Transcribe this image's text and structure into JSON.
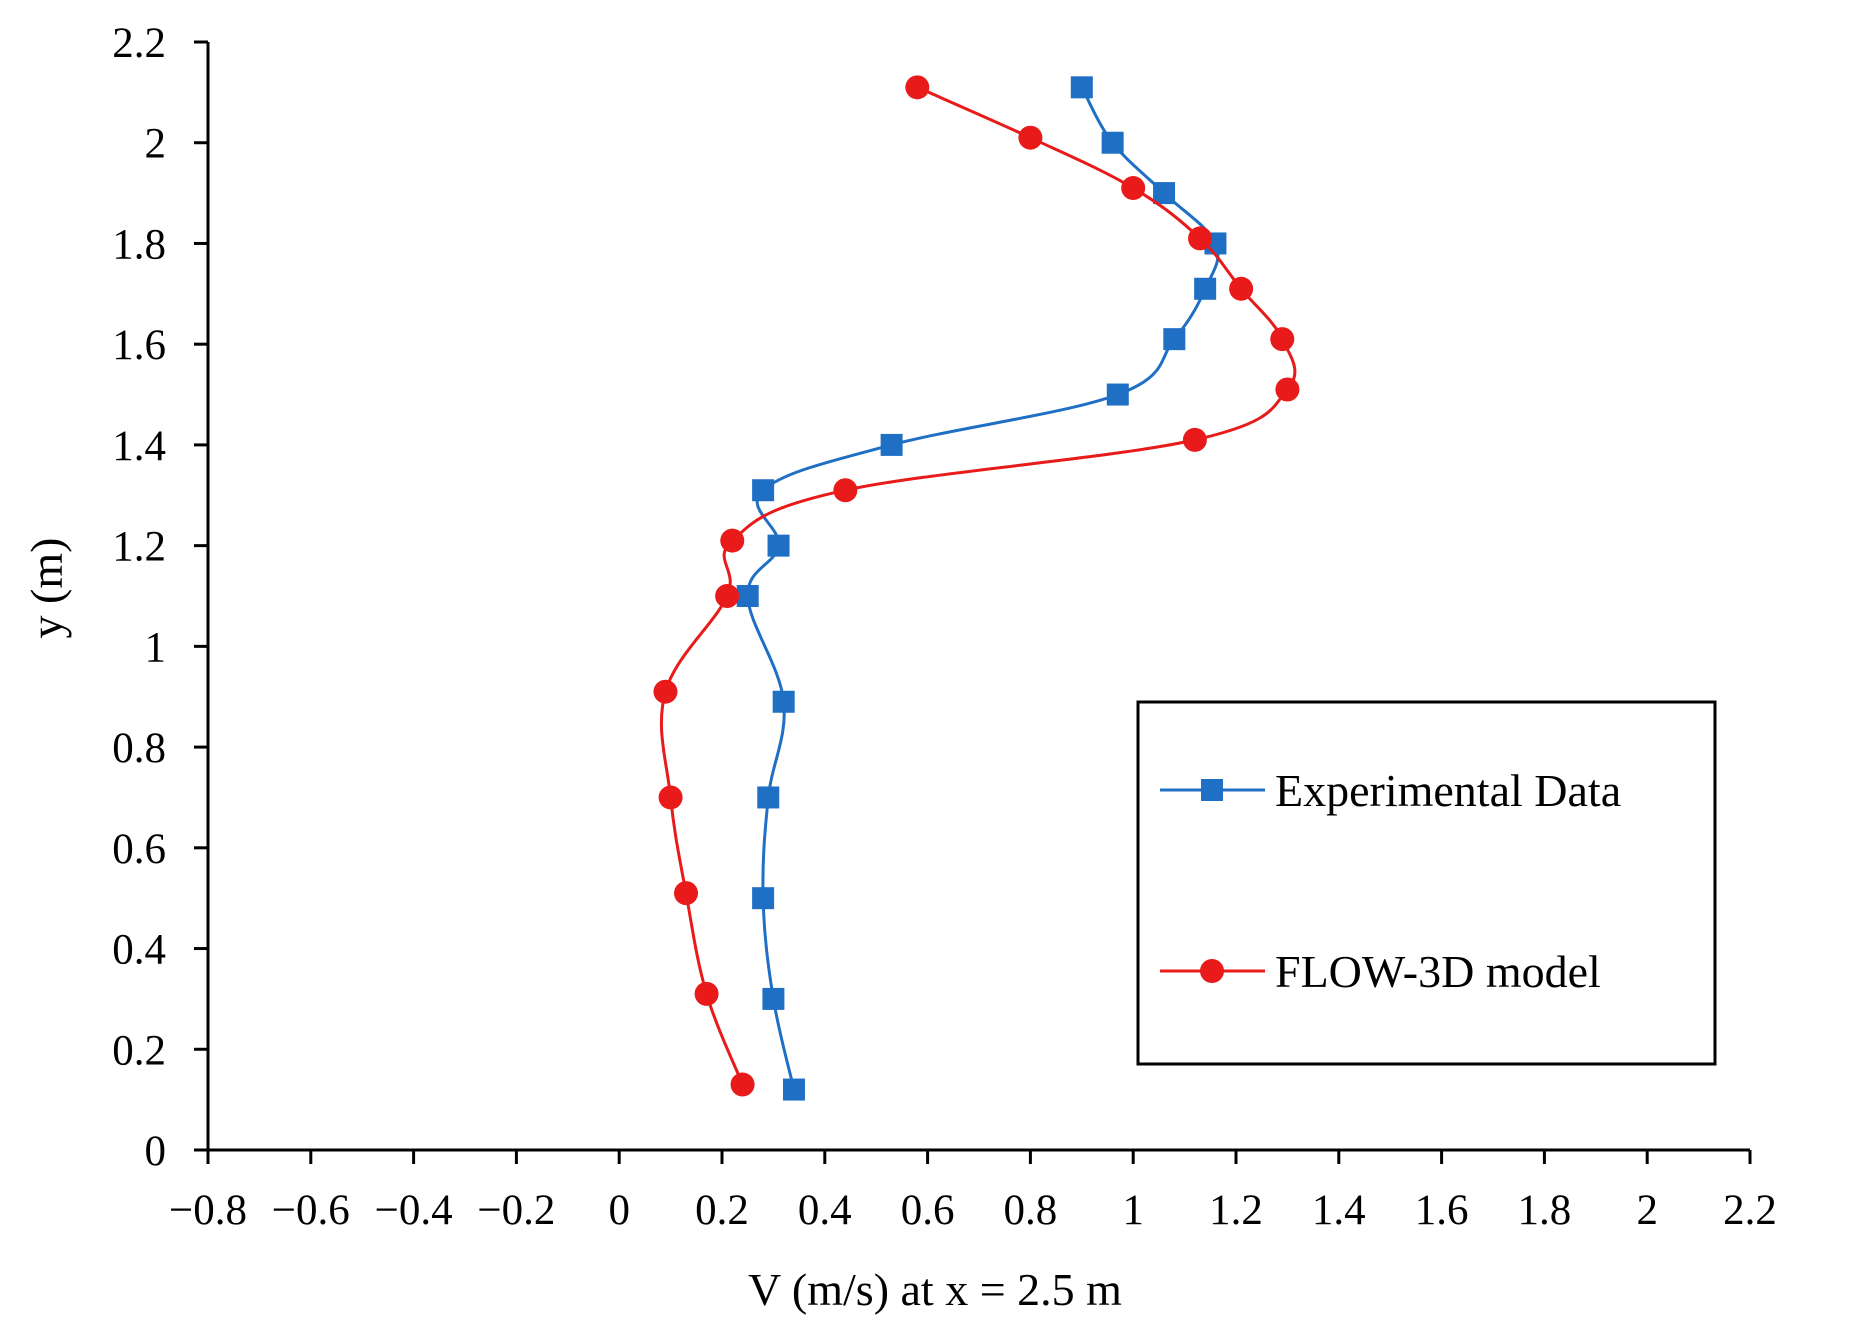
{
  "chart_data": {
    "type": "scatter",
    "title": "",
    "xlabel": "V (m/s) at x = 2.5 m",
    "ylabel": "y (m)",
    "xlim": [
      -0.8,
      2.2
    ],
    "ylim": [
      0,
      2.2
    ],
    "x_ticks": [
      "−0.8",
      "−0.6",
      "−0.4",
      "−0.2",
      "0",
      "0.2",
      "0.4",
      "0.6",
      "0.8",
      "1",
      "1.2",
      "1.4",
      "1.6",
      "1.8",
      "2",
      "2.2"
    ],
    "x_tick_values": [
      -0.8,
      -0.6,
      -0.4,
      -0.2,
      0,
      0.2,
      0.4,
      0.6,
      0.8,
      1.0,
      1.2,
      1.4,
      1.6,
      1.8,
      2.0,
      2.2
    ],
    "y_ticks": [
      "0",
      "0.2",
      "0.4",
      "0.6",
      "0.8",
      "1",
      "1.2",
      "1.4",
      "1.6",
      "1.8",
      "2",
      "2.2"
    ],
    "y_tick_values": [
      0,
      0.2,
      0.4,
      0.6,
      0.8,
      1.0,
      1.2,
      1.4,
      1.6,
      1.8,
      2.0,
      2.2
    ],
    "grid": false,
    "legend_position": "right-middle",
    "series": [
      {
        "name": "Experimental Data",
        "color": "#1f6fc5",
        "marker": "square",
        "points": [
          [
            0.34,
            0.12
          ],
          [
            0.3,
            0.3
          ],
          [
            0.28,
            0.5
          ],
          [
            0.29,
            0.7
          ],
          [
            0.32,
            0.89
          ],
          [
            0.25,
            1.1
          ],
          [
            0.31,
            1.2
          ],
          [
            0.28,
            1.31
          ],
          [
            0.53,
            1.4
          ],
          [
            0.97,
            1.5
          ],
          [
            1.08,
            1.61
          ],
          [
            1.14,
            1.71
          ],
          [
            1.16,
            1.8
          ],
          [
            1.06,
            1.9
          ],
          [
            0.96,
            2.0
          ],
          [
            0.9,
            2.11
          ]
        ]
      },
      {
        "name": "FLOW-3D model",
        "color": "#e81a1a",
        "marker": "circle",
        "points": [
          [
            0.24,
            0.13
          ],
          [
            0.17,
            0.31
          ],
          [
            0.13,
            0.51
          ],
          [
            0.1,
            0.7
          ],
          [
            0.09,
            0.91
          ],
          [
            0.21,
            1.1
          ],
          [
            0.22,
            1.21
          ],
          [
            0.44,
            1.31
          ],
          [
            1.12,
            1.41
          ],
          [
            1.3,
            1.51
          ],
          [
            1.29,
            1.61
          ],
          [
            1.21,
            1.71
          ],
          [
            1.13,
            1.81
          ],
          [
            1.0,
            1.91
          ],
          [
            0.8,
            2.01
          ],
          [
            0.58,
            2.11
          ]
        ]
      }
    ]
  }
}
